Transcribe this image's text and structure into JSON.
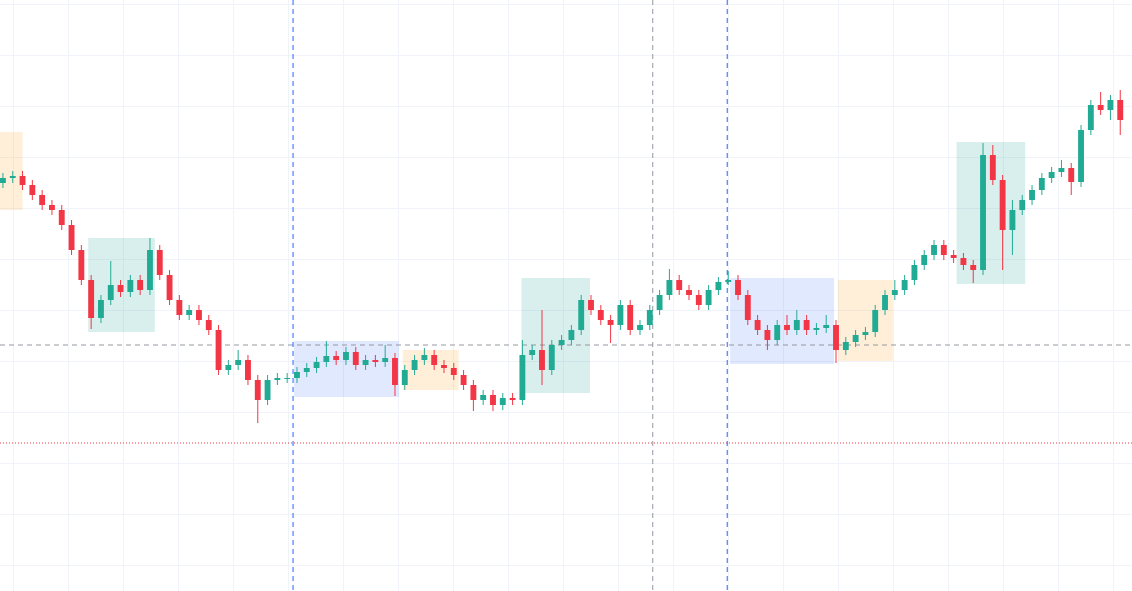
{
  "chart_data": {
    "type": "candlestick",
    "xlim": [
      -0.3,
      115.2
    ],
    "ylim": [
      0,
      591
    ],
    "up_color": "#22ab94",
    "down_color": "#f23645",
    "open": [
      408,
      413,
      415,
      406,
      396,
      386,
      381,
      366,
      341,
      311,
      273,
      291,
      306,
      299,
      311,
      301,
      341,
      316,
      291,
      276,
      281,
      271,
      261,
      221,
      226,
      231,
      211,
      191,
      211,
      213,
      213,
      219,
      223,
      229,
      235,
      231,
      239,
      226,
      231,
      229,
      233,
      206,
      221,
      231,
      236,
      226,
      223,
      216,
      206,
      191,
      196,
      186,
      193,
      191,
      236,
      241,
      221,
      246,
      251,
      261,
      291,
      281,
      271,
      266,
      286,
      261,
      266,
      281,
      296,
      311,
      301,
      296,
      286,
      301,
      309,
      311,
      296,
      271,
      261,
      251,
      266,
      261,
      271,
      261,
      263,
      266,
      241,
      249,
      256,
      259,
      281,
      296,
      301,
      311,
      326,
      336,
      346,
      336,
      333,
      326,
      321,
      436,
      411,
      361,
      381,
      391,
      401,
      413,
      419,
      423,
      409,
      461,
      486,
      481,
      491
    ],
    "high": [
      418,
      420,
      420,
      411,
      401,
      391,
      386,
      371,
      346,
      316,
      296,
      330,
      311,
      316,
      316,
      353,
      346,
      321,
      296,
      286,
      286,
      276,
      266,
      231,
      241,
      236,
      216,
      216,
      218,
      218,
      224,
      228,
      234,
      250,
      240,
      244,
      244,
      236,
      236,
      246,
      238,
      226,
      236,
      243,
      241,
      231,
      228,
      221,
      211,
      201,
      201,
      198,
      198,
      251,
      246,
      281,
      251,
      256,
      266,
      296,
      296,
      286,
      276,
      291,
      291,
      271,
      286,
      301,
      322,
      316,
      306,
      301,
      306,
      314,
      320,
      316,
      301,
      276,
      266,
      271,
      276,
      281,
      276,
      268,
      276,
      271,
      254,
      261,
      264,
      286,
      301,
      311,
      316,
      331,
      341,
      351,
      351,
      341,
      338,
      331,
      448,
      446,
      416,
      391,
      396,
      406,
      418,
      424,
      431,
      428,
      466,
      491,
      499,
      496,
      501
    ],
    "low": [
      403,
      408,
      401,
      391,
      381,
      376,
      361,
      336,
      306,
      262,
      268,
      286,
      294,
      294,
      296,
      296,
      311,
      286,
      271,
      271,
      266,
      256,
      216,
      216,
      221,
      206,
      168,
      186,
      206,
      208,
      208,
      214,
      218,
      224,
      226,
      226,
      221,
      221,
      224,
      224,
      195,
      201,
      216,
      226,
      221,
      218,
      211,
      201,
      180,
      186,
      180,
      181,
      186,
      186,
      231,
      206,
      216,
      241,
      246,
      256,
      276,
      266,
      248,
      261,
      256,
      256,
      261,
      276,
      291,
      296,
      291,
      281,
      281,
      296,
      306,
      291,
      266,
      256,
      241,
      246,
      256,
      256,
      256,
      256,
      258,
      228,
      236,
      244,
      251,
      254,
      276,
      291,
      296,
      306,
      321,
      331,
      331,
      328,
      321,
      308,
      316,
      406,
      321,
      336,
      376,
      386,
      396,
      408,
      414,
      396,
      404,
      456,
      476,
      471,
      456
    ],
    "close": [
      413,
      415,
      406,
      396,
      386,
      381,
      366,
      341,
      311,
      273,
      291,
      306,
      299,
      311,
      301,
      341,
      316,
      291,
      276,
      281,
      271,
      261,
      221,
      226,
      231,
      211,
      191,
      211,
      213,
      213,
      219,
      223,
      229,
      235,
      231,
      239,
      226,
      231,
      229,
      233,
      206,
      221,
      231,
      236,
      226,
      223,
      216,
      206,
      191,
      196,
      186,
      193,
      191,
      236,
      241,
      221,
      246,
      251,
      261,
      291,
      281,
      271,
      266,
      286,
      261,
      266,
      281,
      296,
      311,
      301,
      296,
      286,
      301,
      309,
      311,
      296,
      271,
      261,
      251,
      266,
      261,
      271,
      261,
      263,
      266,
      241,
      249,
      256,
      259,
      281,
      296,
      301,
      311,
      326,
      336,
      346,
      336,
      333,
      326,
      321,
      436,
      411,
      361,
      381,
      391,
      401,
      413,
      419,
      423,
      409,
      461,
      486,
      481,
      491,
      471
    ],
    "zones": [
      {
        "x": [
          -0.3,
          2.0
        ],
        "y": [
          381,
          459
        ],
        "color": "rgba(255,183,77,0.22)"
      },
      {
        "x": [
          8.7,
          15.5
        ],
        "y": [
          259,
          353
        ],
        "color": "rgba(38,166,154,0.18)"
      },
      {
        "x": [
          29.7,
          40.4
        ],
        "y": [
          194,
          250
        ],
        "color": "rgba(41,98,255,0.14)"
      },
      {
        "x": [
          40.8,
          46.5
        ],
        "y": [
          201,
          241
        ],
        "color": "rgba(255,183,77,0.22)"
      },
      {
        "x": [
          52.9,
          59.9
        ],
        "y": [
          198,
          313
        ],
        "color": "rgba(38,166,154,0.18)"
      },
      {
        "x": [
          74.2,
          84.8
        ],
        "y": [
          227,
          313
        ],
        "color": "rgba(41,98,255,0.14)"
      },
      {
        "x": [
          85.2,
          90.8
        ],
        "y": [
          230,
          311
        ],
        "color": "rgba(255,183,77,0.22)"
      },
      {
        "x": [
          97.3,
          104.3
        ],
        "y": [
          307,
          449
        ],
        "color": "rgba(38,166,154,0.18)"
      }
    ],
    "vlines": [
      {
        "x": 29.6,
        "color": "#2962ff",
        "dash": "5 4"
      },
      {
        "x": 66.3,
        "color": "#9598a1",
        "dash": "5 4"
      },
      {
        "x": 73.9,
        "color": "#2962ff",
        "dash": "5 4"
      }
    ],
    "hlines": [
      {
        "y": 246,
        "color": "#9598a1",
        "dash": "5 4"
      },
      {
        "y": 148,
        "color": "#f23645",
        "dash": "1 2"
      }
    ]
  }
}
